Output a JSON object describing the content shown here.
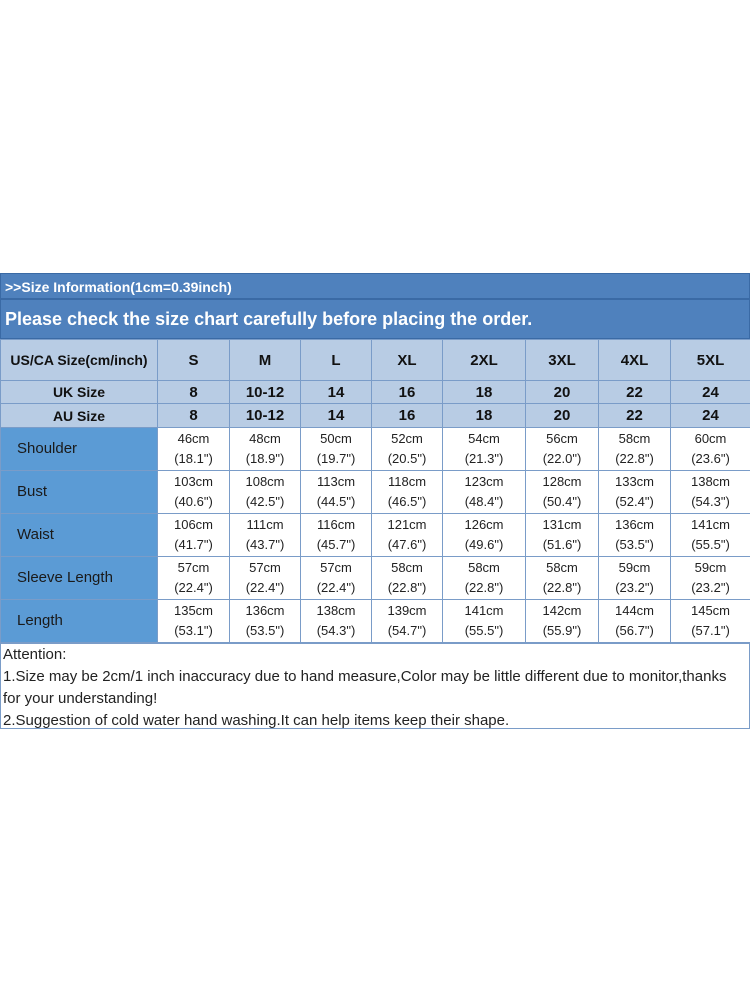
{
  "banner": {
    "info": ">>Size Information(1cm=0.39inch)",
    "notice": "Please check the size chart carefully before placing the order."
  },
  "header_rows": [
    {
      "label": "US/CA Size(cm/inch)",
      "values": [
        "S",
        "M",
        "L",
        "XL",
        "2XL",
        "3XL",
        "4XL",
        "5XL"
      ]
    },
    {
      "label": "UK Size",
      "values": [
        "8",
        "10-12",
        "14",
        "16",
        "18",
        "20",
        "22",
        "24"
      ]
    },
    {
      "label": "AU Size",
      "values": [
        "8",
        "10-12",
        "14",
        "16",
        "18",
        "20",
        "22",
        "24"
      ]
    }
  ],
  "rows": [
    {
      "label": "Shoulder",
      "cm": [
        "46cm",
        "48cm",
        "50cm",
        "52cm",
        "54cm",
        "56cm",
        "58cm",
        "60cm"
      ],
      "inch": [
        "(18.1\")",
        "(18.9\")",
        "(19.7\")",
        "(20.5\")",
        "(21.3\")",
        "(22.0\")",
        "(22.8\")",
        "(23.6\")"
      ]
    },
    {
      "label": "Bust",
      "cm": [
        "103cm",
        "108cm",
        "113cm",
        "118cm",
        "123cm",
        "128cm",
        "133cm",
        "138cm"
      ],
      "inch": [
        "(40.6\")",
        "(42.5\")",
        "(44.5\")",
        "(46.5\")",
        "(48.4\")",
        "(50.4\")",
        "(52.4\")",
        "(54.3\")"
      ]
    },
    {
      "label": "Waist",
      "cm": [
        "106cm",
        "111cm",
        "116cm",
        "121cm",
        "126cm",
        "131cm",
        "136cm",
        "141cm"
      ],
      "inch": [
        "(41.7\")",
        "(43.7\")",
        "(45.7\")",
        "(47.6\")",
        "(49.6\")",
        "(51.6\")",
        "(53.5\")",
        "(55.5\")"
      ]
    },
    {
      "label": "Sleeve Length",
      "cm": [
        "57cm",
        "57cm",
        "57cm",
        "58cm",
        "58cm",
        "58cm",
        "59cm",
        "59cm"
      ],
      "inch": [
        "(22.4\")",
        "(22.4\")",
        "(22.4\")",
        "(22.8\")",
        "(22.8\")",
        "(22.8\")",
        "(23.2\")",
        "(23.2\")"
      ]
    },
    {
      "label": "Length",
      "cm": [
        "135cm",
        "136cm",
        "138cm",
        "139cm",
        "141cm",
        "142cm",
        "144cm",
        "145cm"
      ],
      "inch": [
        "(53.1\")",
        "(53.5\")",
        "(54.3\")",
        "(54.7\")",
        "(55.5\")",
        "(55.9\")",
        "(56.7\")",
        "(57.1\")"
      ]
    }
  ],
  "attention": {
    "title": "Attention:",
    "notes": [
      "1.Size may be 2cm/1 inch inaccuracy due to hand measure,Color may be little different due to monitor,thanks for your understanding!",
      "2.Suggestion of cold water hand washing.It can help items keep their shape."
    ]
  },
  "colors": {
    "banner": "#4f81bd",
    "header_cells": "#b8cce4",
    "label_column": "#5b9bd5"
  }
}
